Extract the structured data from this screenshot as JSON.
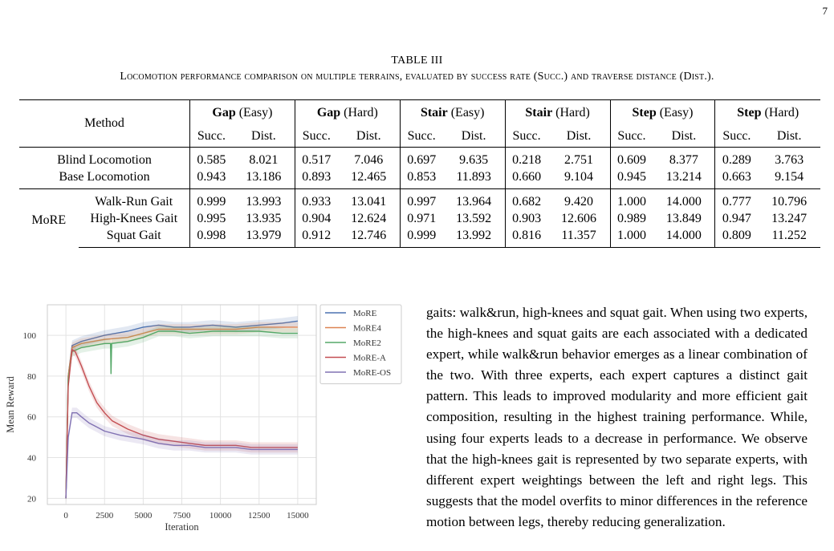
{
  "page_number": "7",
  "table": {
    "number_label": "TABLE III",
    "caption": "Locomotion performance comparison on multiple terrains, evaluated by success rate (Succ.) and traverse distance (Dist.).",
    "method_header": "Method",
    "groups": [
      {
        "bold": "Gap",
        "rest": " (Easy)"
      },
      {
        "bold": "Gap",
        "rest": " (Hard)"
      },
      {
        "bold": "Stair",
        "rest": " (Easy)"
      },
      {
        "bold": "Stair",
        "rest": " (Hard)"
      },
      {
        "bold": "Step",
        "rest": " (Easy)"
      },
      {
        "bold": "Step",
        "rest": " (Hard)"
      }
    ],
    "sub_succ": "Succ.",
    "sub_dist": "Dist.",
    "baselines": [
      {
        "name": "Blind Locomotion",
        "values": [
          "0.585",
          "8.021",
          "0.517",
          "7.046",
          "0.697",
          "9.635",
          "0.218",
          "2.751",
          "0.609",
          "8.377",
          "0.289",
          "3.763"
        ]
      },
      {
        "name": "Base Locomotion",
        "values": [
          "0.943",
          "13.186",
          "0.893",
          "12.465",
          "0.853",
          "11.893",
          "0.660",
          "9.104",
          "0.945",
          "13.214",
          "0.663",
          "9.154"
        ]
      }
    ],
    "more_label": "MoRE",
    "more_rows": [
      {
        "name": "Walk-Run Gait",
        "values": [
          "0.999",
          "13.993",
          "0.933",
          "13.041",
          "0.997",
          "13.964",
          "0.682",
          "9.420",
          "1.000",
          "14.000",
          "0.777",
          "10.796"
        ],
        "bold": [
          0,
          1,
          2,
          3,
          8,
          9
        ]
      },
      {
        "name": "High-Knees Gait",
        "values": [
          "0.995",
          "13.935",
          "0.904",
          "12.624",
          "0.971",
          "13.592",
          "0.903",
          "12.606",
          "0.989",
          "13.849",
          "0.947",
          "13.247"
        ],
        "bold": [
          6,
          7,
          10,
          11
        ]
      },
      {
        "name": "Squat Gait",
        "values": [
          "0.998",
          "13.979",
          "0.912",
          "12.746",
          "0.999",
          "13.992",
          "0.816",
          "11.357",
          "1.000",
          "14.000",
          "0.809",
          "11.252"
        ],
        "bold": [
          4,
          5,
          8,
          9
        ]
      }
    ]
  },
  "chart_data": {
    "type": "line",
    "xlabel": "Iteration",
    "ylabel": "Mean Reward",
    "xlim": [
      -1200,
      16200
    ],
    "ylim": [
      17,
      115
    ],
    "xticks": [
      0,
      2500,
      5000,
      7500,
      10000,
      12500,
      15000
    ],
    "yticks": [
      20,
      40,
      60,
      80,
      100
    ],
    "grid": true,
    "legend_position": "top-right",
    "series": [
      {
        "name": "MoRE",
        "color": "#4c72b0",
        "points": [
          [
            0,
            20
          ],
          [
            150,
            80
          ],
          [
            400,
            95
          ],
          [
            1000,
            97
          ],
          [
            2500,
            100
          ],
          [
            4000,
            102
          ],
          [
            5000,
            104
          ],
          [
            6000,
            105
          ],
          [
            7000,
            104
          ],
          [
            8000,
            104
          ],
          [
            9500,
            105
          ],
          [
            11000,
            104
          ],
          [
            12500,
            105
          ],
          [
            14000,
            106
          ],
          [
            15000,
            107
          ]
        ]
      },
      {
        "name": "MoRE4",
        "color": "#dd8452",
        "points": [
          [
            0,
            20
          ],
          [
            150,
            80
          ],
          [
            400,
            94
          ],
          [
            1000,
            96
          ],
          [
            2500,
            98
          ],
          [
            4000,
            99
          ],
          [
            5000,
            101
          ],
          [
            6000,
            103
          ],
          [
            7000,
            103
          ],
          [
            8000,
            103
          ],
          [
            9500,
            103
          ],
          [
            11000,
            103
          ],
          [
            12500,
            104
          ],
          [
            14000,
            104
          ],
          [
            15000,
            104
          ]
        ]
      },
      {
        "name": "MoRE2",
        "color": "#55a868",
        "points": [
          [
            0,
            20
          ],
          [
            150,
            78
          ],
          [
            400,
            92
          ],
          [
            1000,
            94
          ],
          [
            2500,
            96
          ],
          [
            2890,
            96
          ],
          [
            2920,
            81
          ],
          [
            2960,
            96
          ],
          [
            4000,
            97
          ],
          [
            5000,
            99
          ],
          [
            6000,
            102
          ],
          [
            7000,
            102
          ],
          [
            8000,
            101
          ],
          [
            9500,
            102
          ],
          [
            11000,
            102
          ],
          [
            12500,
            102
          ],
          [
            14000,
            101
          ],
          [
            15000,
            101
          ]
        ]
      },
      {
        "name": "MoRE-A",
        "color": "#c44e52",
        "points": [
          [
            0,
            20
          ],
          [
            150,
            75
          ],
          [
            400,
            93
          ],
          [
            600,
            92
          ],
          [
            1000,
            85
          ],
          [
            1500,
            75
          ],
          [
            2000,
            67
          ],
          [
            2500,
            62
          ],
          [
            3000,
            58
          ],
          [
            4000,
            54
          ],
          [
            5000,
            51
          ],
          [
            6000,
            49
          ],
          [
            7000,
            48
          ],
          [
            8000,
            47
          ],
          [
            9000,
            46
          ],
          [
            10000,
            46
          ],
          [
            11000,
            46
          ],
          [
            12000,
            45
          ],
          [
            13000,
            45
          ],
          [
            14000,
            45
          ],
          [
            15000,
            45
          ]
        ]
      },
      {
        "name": "MoRE-OS",
        "color": "#8172b3",
        "points": [
          [
            0,
            20
          ],
          [
            150,
            50
          ],
          [
            400,
            62
          ],
          [
            700,
            62
          ],
          [
            1000,
            60
          ],
          [
            1500,
            57
          ],
          [
            2000,
            55
          ],
          [
            2500,
            53
          ],
          [
            3500,
            51
          ],
          [
            5000,
            49
          ],
          [
            6000,
            47
          ],
          [
            7000,
            46
          ],
          [
            8000,
            46
          ],
          [
            9000,
            45
          ],
          [
            10000,
            45
          ],
          [
            11000,
            45
          ],
          [
            12000,
            44
          ],
          [
            13000,
            44
          ],
          [
            14000,
            44
          ],
          [
            15000,
            44
          ]
        ]
      }
    ]
  },
  "paragraph": "gaits: walk&run, high-knees and squat gait. When using two experts, the high-knees and squat gaits are each associated with a dedicated expert, while walk&run behavior emerges as a linear combination of the two. With three experts, each expert captures a distinct gait pattern. This leads to improved modularity and more efficient gait composition, resulting in the highest training performance. While, using four experts leads to a decrease in performance. We observe that the high-knees gait is represented by two separate experts, with different expert weightings between the left and right legs. This suggests that the model overfits to minor differences in the reference motion between legs, thereby reducing generalization."
}
